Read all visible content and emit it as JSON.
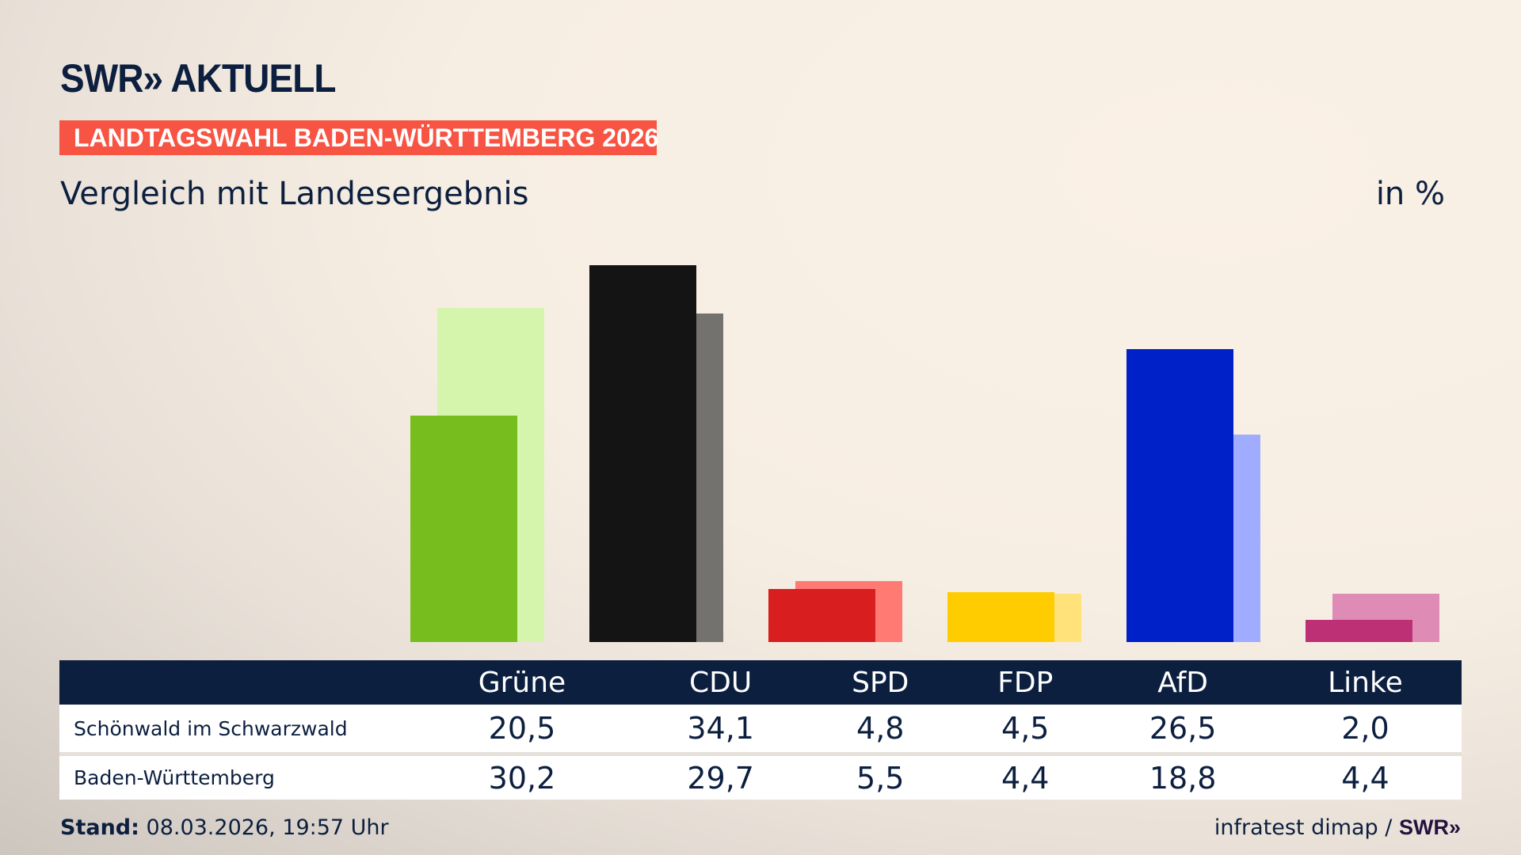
{
  "header": {
    "logo": "SWR» AKTUELL",
    "banner": "LANDTAGSWAHL BADEN-WÜRTTEMBERG 2026",
    "subtitle": "Vergleich mit Landesergebnis",
    "unit": "in %"
  },
  "chart_data": {
    "type": "bar",
    "categories": [
      "Grüne",
      "CDU",
      "SPD",
      "FDP",
      "AfD",
      "Linke"
    ],
    "series": [
      {
        "name": "Schönwald im Schwarzwald",
        "values": [
          20.5,
          34.1,
          4.8,
          4.5,
          26.5,
          2.0
        ],
        "colors": [
          "#78bd1e",
          "#141414",
          "#d81e1e",
          "#ffcc00",
          "#0020c8",
          "#be3075"
        ]
      },
      {
        "name": "Baden-Württemberg",
        "values": [
          30.2,
          29.7,
          5.5,
          4.4,
          18.8,
          4.4
        ],
        "colors": [
          "#d5f5ad",
          "#74726f",
          "#ff7a72",
          "#ffe37a",
          "#a0acff",
          "#de8bb6"
        ]
      }
    ],
    "ylim": [
      0,
      34.1
    ]
  },
  "table": {
    "headers": [
      "Grüne",
      "CDU",
      "SPD",
      "FDP",
      "AfD",
      "Linke"
    ],
    "rows": [
      {
        "label": "Schönwald im Schwarzwald",
        "values": [
          "20,5",
          "34,1",
          "4,8",
          "4,5",
          "26,5",
          "2,0"
        ]
      },
      {
        "label": "Baden-Württemberg",
        "values": [
          "30,2",
          "29,7",
          "5,5",
          "4,4",
          "18,8",
          "4,4"
        ]
      }
    ]
  },
  "footer": {
    "stand_label": "Stand:",
    "stand_value": "08.03.2026, 19:57 Uhr",
    "source": "infratest dimap /",
    "source_logo": "SWR»"
  }
}
